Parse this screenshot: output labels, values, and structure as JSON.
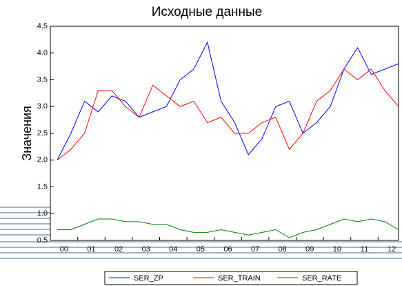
{
  "chart_data": {
    "type": "line",
    "title": "Исходные данные",
    "y_label": "Значения",
    "categories": [
      "00",
      null,
      "01",
      null,
      "02",
      null,
      "03",
      null,
      "04",
      null,
      "05",
      null,
      "06",
      null,
      "07",
      null,
      "08",
      null,
      "09",
      null,
      "10",
      null,
      "11",
      null,
      "12",
      null
    ],
    "series": [
      {
        "name": "SER_ZP",
        "color": "#0000ff",
        "values": [
          2.0,
          2.5,
          3.1,
          2.9,
          3.2,
          3.1,
          2.8,
          2.9,
          3.0,
          3.5,
          3.7,
          4.2,
          3.1,
          2.7,
          2.1,
          2.4,
          3.0,
          3.1,
          2.5,
          2.7,
          3.0,
          3.7,
          4.1,
          3.6,
          3.7,
          3.8
        ]
      },
      {
        "name": "SER_TRAIN",
        "color": "#ff0000",
        "values": [
          2.0,
          2.2,
          2.5,
          3.3,
          3.3,
          3.0,
          2.8,
          3.4,
          3.2,
          3.0,
          3.1,
          2.7,
          2.8,
          2.5,
          2.5,
          2.7,
          2.8,
          2.2,
          2.5,
          3.1,
          3.3,
          3.7,
          3.5,
          3.7,
          3.3,
          3.0
        ]
      },
      {
        "name": "SER_RATE",
        "color": "#008000",
        "values": [
          0.7,
          0.7,
          0.8,
          0.9,
          0.9,
          0.85,
          0.85,
          0.8,
          0.8,
          0.7,
          0.65,
          0.65,
          0.7,
          0.65,
          0.6,
          0.65,
          0.7,
          0.55,
          0.65,
          0.7,
          0.8,
          0.9,
          0.85,
          0.9,
          0.85,
          0.7
        ]
      }
    ],
    "ylim": [
      0.5,
      4.5
    ],
    "yticks": [
      0.5,
      {
        "value": 1,
        "label": "1.0"
      },
      1.5,
      {
        "value": 2,
        "label": "2.0"
      },
      2.5,
      {
        "value": 3,
        "label": "3.0"
      },
      3.5,
      {
        "value": 4,
        "label": "4.0"
      },
      4.5
    ],
    "legend": "bottom"
  }
}
